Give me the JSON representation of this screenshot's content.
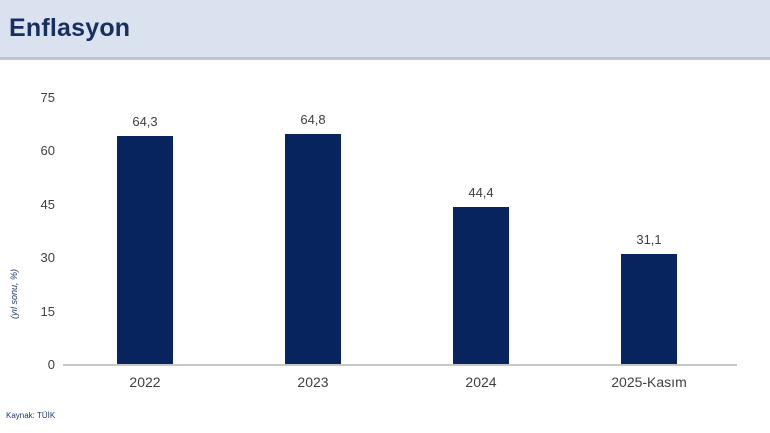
{
  "header": {
    "title": "Enflasyon"
  },
  "footer": {
    "source": "Kaynak: TÜİK"
  },
  "colors": {
    "bar": "#07245f",
    "header_bg": "#d9e2ee",
    "header_border": "#bcc4cf",
    "title_text": "#173061",
    "axis_line": "#c8c8c8",
    "tick_label": "#404040",
    "ylabel_text": "#1f3864"
  },
  "chart_data": {
    "type": "bar",
    "categories": [
      "2022",
      "2023",
      "2024",
      "2025-Kasım"
    ],
    "values": [
      64.3,
      64.8,
      44.4,
      31.1
    ],
    "value_labels": [
      "64,3",
      "64,8",
      "44,4",
      "31,1"
    ],
    "title": "Enflasyon",
    "xlabel": "",
    "ylabel": "(yıl sonu, %)",
    "ylim": [
      0,
      75
    ],
    "yticks": [
      0,
      15,
      30,
      45,
      60,
      75
    ],
    "grid": false,
    "legend": false,
    "bar_color": "#07245f"
  }
}
